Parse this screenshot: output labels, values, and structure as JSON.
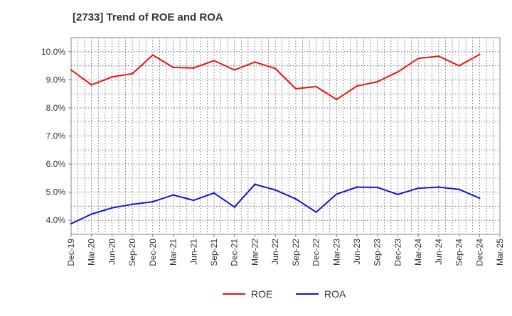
{
  "chart_data": {
    "type": "line",
    "title": "[2733]  Trend of ROE and ROA",
    "xlabel": "",
    "ylabel": "",
    "x_ticks": [
      "Dec-19",
      "Mar-20",
      "Jun-20",
      "Sep-20",
      "Dec-20",
      "Mar-21",
      "Jun-21",
      "Sep-21",
      "Dec-21",
      "Mar-22",
      "Jun-22",
      "Sep-22",
      "Dec-22",
      "Mar-23",
      "Jun-23",
      "Sep-23",
      "Dec-23",
      "Mar-24",
      "Jun-24",
      "Sep-24",
      "Dec-24",
      "Mar-25"
    ],
    "x": [
      "Dec-19",
      "Mar-20",
      "Jun-20",
      "Sep-20",
      "Dec-20",
      "Mar-21",
      "Jun-21",
      "Sep-21",
      "Dec-21",
      "Mar-22",
      "Jun-22",
      "Sep-22",
      "Dec-22",
      "Mar-23",
      "Jun-23",
      "Sep-23",
      "Dec-23",
      "Mar-24",
      "Jun-24",
      "Sep-24",
      "Dec-24"
    ],
    "y_ticks": [
      "4.0%",
      "5.0%",
      "6.0%",
      "7.0%",
      "8.0%",
      "9.0%",
      "10.0%"
    ],
    "y_tick_values": [
      4,
      5,
      6,
      7,
      8,
      9,
      10
    ],
    "ylim": [
      3.5,
      10.5
    ],
    "grid": true,
    "legend_position": "bottom",
    "series": [
      {
        "name": "ROE",
        "color": "#ee1111",
        "values": [
          9.35,
          8.82,
          9.1,
          9.22,
          9.88,
          9.44,
          9.42,
          9.68,
          9.35,
          9.63,
          9.4,
          8.68,
          8.76,
          8.3,
          8.78,
          8.93,
          9.28,
          9.76,
          9.84,
          9.5,
          9.9
        ]
      },
      {
        "name": "ROA",
        "color": "#1111dd",
        "values": [
          3.88,
          4.22,
          4.44,
          4.57,
          4.66,
          4.9,
          4.71,
          4.97,
          4.47,
          5.28,
          5.08,
          4.76,
          4.29,
          4.93,
          5.18,
          5.17,
          4.92,
          5.14,
          5.18,
          5.1,
          4.79
        ]
      }
    ]
  }
}
